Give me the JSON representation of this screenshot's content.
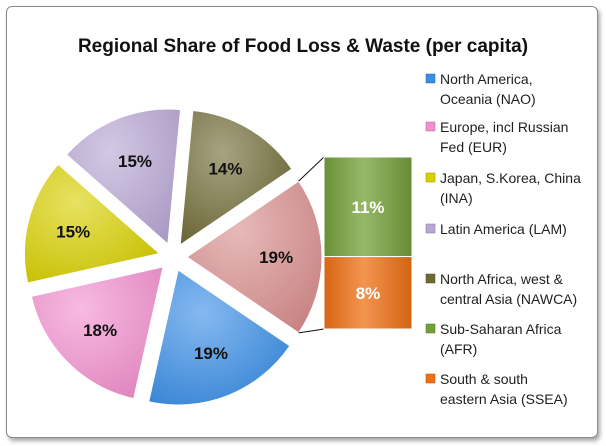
{
  "chart_data": {
    "type": "pie",
    "title": "Regional Share of Food Loss & Waste (per capita)",
    "slices": [
      {
        "label": "North America, Oceania (NAO)",
        "value": 19,
        "color": "#3a8ee6"
      },
      {
        "label": "Europe, incl Russian Fed (EUR)",
        "value": 18,
        "color": "#f28fcf"
      },
      {
        "label": "Japan, S.Korea, China (INA)",
        "value": 15,
        "color": "#d8d000"
      },
      {
        "label": "Latin America (LAM)",
        "value": 15,
        "color": "#b9a6d4"
      },
      {
        "label": "North Africa, west & central Asia (NAWCA)",
        "value": 14,
        "color": "#6f6a35"
      },
      {
        "label": "Sub-Saharan Africa (AFR)",
        "value": 11,
        "color": "#74a03a"
      },
      {
        "label": "South & south eastern Asia (SSEA)",
        "value": 8,
        "color": "#ef7015"
      }
    ],
    "other_slice": {
      "value": 19,
      "color": "#d98e8e"
    },
    "bar_of_pie": {
      "segments": [
        {
          "label": "Sub-Saharan Africa (AFR)",
          "value": 11,
          "color": "#74a03a"
        },
        {
          "label": "South & south eastern Asia (SSEA)",
          "value": 8,
          "color": "#ef7015"
        }
      ]
    },
    "legend": {
      "position": "right",
      "entries": [
        {
          "lines": [
            "North America,",
            "Oceania (NAO)"
          ],
          "color": "#3a8ee6"
        },
        {
          "lines": [
            "Europe, incl Russian",
            "Fed (EUR)"
          ],
          "color": "#f28fcf"
        },
        {
          "lines": [
            "Japan, S.Korea, China",
            "(INA)"
          ],
          "color": "#d8d000"
        },
        {
          "lines": [
            "Latin America (LAM)"
          ],
          "color": "#b9a6d4"
        },
        {
          "lines": [
            "North Africa, west &",
            "central Asia (NAWCA)"
          ],
          "color": "#6f6a35"
        },
        {
          "lines": [
            "Sub-Saharan Africa",
            "(AFR)"
          ],
          "color": "#74a03a"
        },
        {
          "lines": [
            "South & south",
            "eastern Asia (SSEA)"
          ],
          "color": "#ef7015"
        }
      ]
    }
  }
}
